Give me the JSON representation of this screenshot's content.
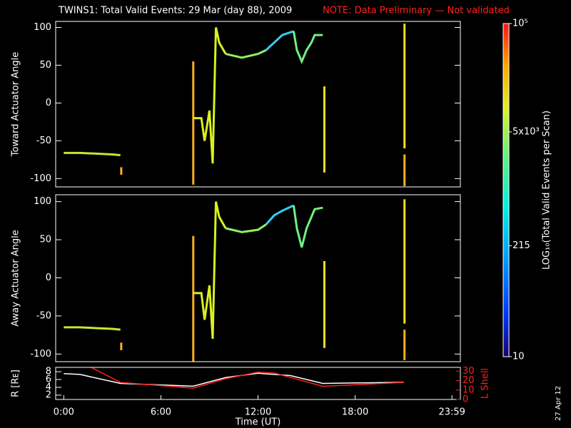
{
  "title": "TWINS1: Total Valid Events: 29 Mar (day  88), 2009",
  "note": "NOTE: Data Preliminary — Not validated",
  "date_stamp": "27 Apr 12",
  "colorbar": {
    "label": "LOG₁₀(Total Valid Events per Scan)",
    "log": true,
    "lim": [
      10,
      100000
    ],
    "ticks": [
      {
        "value": 10,
        "label": "10"
      },
      {
        "value": 215,
        "label": "215"
      },
      {
        "value": 5000,
        "label": "5x10³"
      },
      {
        "value": 100000,
        "label": "10⁵"
      }
    ]
  },
  "chart_data": [
    {
      "type": "line",
      "ylabel": "Toward Actuator Angle",
      "xlim": [
        -0.5,
        24.5
      ],
      "ylim": [
        -111,
        108
      ],
      "yticks": [
        -100,
        -50,
        0,
        50,
        100
      ],
      "series": [
        {
          "color": "#c8e632",
          "x": [
            0,
            1,
            2,
            3,
            3.5
          ],
          "values": [
            -66,
            -66,
            -67,
            -68,
            -69
          ]
        },
        {
          "color": "#ffb020",
          "x": [
            3.55,
            3.55
          ],
          "values": [
            -85,
            -95
          ]
        },
        {
          "color": "#ffb020",
          "x": [
            8.0,
            8.0
          ],
          "values": [
            55,
            -108
          ]
        },
        {
          "color": "#d8f020",
          "x": [
            8.0,
            8.5,
            8.7,
            9.0,
            9.2,
            9.4,
            9.6,
            10.0
          ],
          "values": [
            -20,
            -20,
            -50,
            -10,
            -80,
            100,
            80,
            65
          ]
        },
        {
          "color": "#90f060",
          "x": [
            10.0,
            11.0,
            12.0,
            12.5
          ],
          "values": [
            65,
            60,
            65,
            70
          ]
        },
        {
          "color": "#30d0f0",
          "x": [
            12.5,
            13.0,
            13.5,
            14.2
          ],
          "values": [
            70,
            80,
            90,
            95
          ]
        },
        {
          "color": "#70f080",
          "x": [
            14.2,
            14.4,
            14.7,
            15.0,
            15.3,
            15.5,
            16.0
          ],
          "values": [
            95,
            70,
            55,
            70,
            80,
            90,
            90
          ]
        },
        {
          "color": "#f0e020",
          "x": [
            16.1,
            16.1
          ],
          "values": [
            22,
            -92
          ]
        },
        {
          "color": "#f0e020",
          "x": [
            21.05,
            21.05
          ],
          "values": [
            105,
            -60
          ]
        },
        {
          "color": "#ffb020",
          "x": [
            21.05,
            21.05
          ],
          "values": [
            -68,
            -110
          ]
        }
      ]
    },
    {
      "type": "line",
      "ylabel": "Away Actuator Angle",
      "xlim": [
        -0.5,
        24.5
      ],
      "ylim": [
        -110,
        109
      ],
      "yticks": [
        -100,
        -50,
        0,
        50,
        100
      ],
      "series": [
        {
          "color": "#c8e632",
          "x": [
            0,
            1,
            2,
            3,
            3.5
          ],
          "values": [
            -65,
            -65,
            -66,
            -67,
            -68
          ]
        },
        {
          "color": "#ffb020",
          "x": [
            3.55,
            3.55
          ],
          "values": [
            -85,
            -95
          ]
        },
        {
          "color": "#ffb020",
          "x": [
            8.0,
            8.0
          ],
          "values": [
            55,
            -110
          ]
        },
        {
          "color": "#d8f020",
          "x": [
            8.0,
            8.5,
            8.7,
            9.0,
            9.2,
            9.4,
            9.6,
            10.0
          ],
          "values": [
            -20,
            -20,
            -55,
            -10,
            -80,
            100,
            80,
            65
          ]
        },
        {
          "color": "#90f060",
          "x": [
            10.0,
            11.0,
            12.0,
            12.5
          ],
          "values": [
            65,
            60,
            63,
            70
          ]
        },
        {
          "color": "#30d0f0",
          "x": [
            12.5,
            13.0,
            13.5,
            14.2
          ],
          "values": [
            70,
            82,
            88,
            95
          ]
        },
        {
          "color": "#70f080",
          "x": [
            14.2,
            14.4,
            14.7,
            15.0,
            15.3,
            15.5,
            16.0
          ],
          "values": [
            95,
            65,
            40,
            65,
            80,
            90,
            92
          ]
        },
        {
          "color": "#f0e020",
          "x": [
            16.1,
            16.1
          ],
          "values": [
            22,
            -92
          ]
        },
        {
          "color": "#f0e020",
          "x": [
            21.05,
            21.05
          ],
          "values": [
            103,
            -60
          ]
        },
        {
          "color": "#ffb020",
          "x": [
            21.05,
            21.05
          ],
          "values": [
            -68,
            -108
          ]
        }
      ]
    },
    {
      "type": "line",
      "ylabel": "R [Rᴇ]",
      "y2label": "L Shell",
      "xlabel": "Time (UT)",
      "xlim": [
        -0.5,
        24.5
      ],
      "xticks": [
        {
          "value": 0,
          "label": "0:00"
        },
        {
          "value": 6,
          "label": "6:00"
        },
        {
          "value": 12,
          "label": "12:00"
        },
        {
          "value": 18,
          "label": "18:00"
        },
        {
          "value": 23.98,
          "label": "23:59"
        }
      ],
      "ylim": [
        0.9,
        9.1
      ],
      "yticks": [
        2,
        4,
        6,
        8
      ],
      "y2lim": [
        0,
        34
      ],
      "y2ticks": [
        0,
        10,
        20,
        30
      ],
      "series": [
        {
          "color": "#ffffff",
          "x": [
            0,
            1,
            3.5,
            8,
            10,
            12,
            14,
            16,
            21
          ],
          "values": [
            7.5,
            7.3,
            5,
            4.3,
            6.5,
            7.6,
            7,
            5.0,
            5.3
          ]
        },
        {
          "color": "#ff2020",
          "axis": "y2",
          "x": [
            1.7,
            3.5,
            8,
            10,
            12,
            13,
            16,
            21
          ],
          "values": [
            34,
            18,
            12,
            22,
            29,
            28,
            14,
            18
          ]
        }
      ]
    }
  ]
}
